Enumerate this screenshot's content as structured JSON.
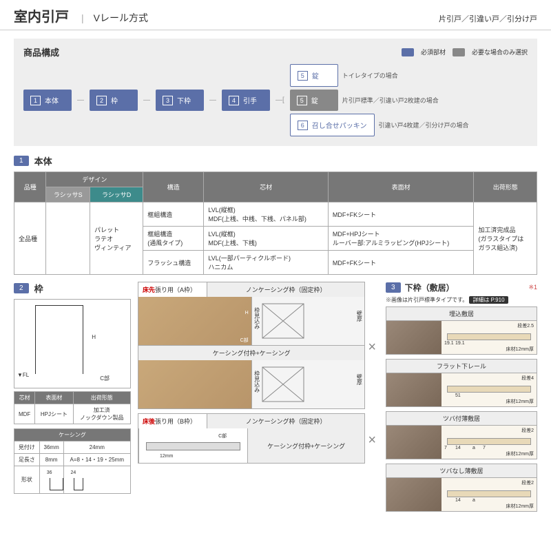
{
  "header": {
    "title": "室内引戸",
    "subtitle": "Vレール方式",
    "right": "片引戸／引違い戸／引分け戸"
  },
  "config": {
    "title": "商品構成",
    "legend": {
      "req": "必須部材",
      "req_color": "#5b6fa8",
      "opt": "必要な場合のみ選択",
      "opt_color": "#888"
    },
    "steps": [
      {
        "num": "1",
        "label": "本体"
      },
      {
        "num": "2",
        "label": "枠"
      },
      {
        "num": "3",
        "label": "下枠"
      },
      {
        "num": "4",
        "label": "引手"
      }
    ],
    "branches": [
      {
        "num": "5",
        "label": "錠",
        "note": "トイレタイプの場合",
        "style": "outline"
      },
      {
        "num": "5",
        "label": "錠",
        "note": "片引戸標準／引違い戸2枚建の場合",
        "style": "gray"
      },
      {
        "num": "6",
        "label": "召し合せパッキン",
        "note": "引違い戸4枚建／引分け戸の場合",
        "style": "outline"
      }
    ]
  },
  "section1": {
    "num": "1",
    "label": "本体"
  },
  "table1": {
    "headers": [
      "品種",
      "デザイン",
      "構造",
      "芯材",
      "表面材",
      "出荷形態"
    ],
    "sub": {
      "s": "ラシッサS",
      "d": "ラシッサD"
    },
    "row": {
      "hinshu": "全品種",
      "design_d": "パレット\nラテオ\nヴィンティア",
      "kouzou": [
        "框組構造",
        "框組構造\n(通風タイプ)",
        "フラッシュ構造"
      ],
      "shin": [
        "LVL(縦框)\nMDF(上桟、中桟、下桟、パネル部)",
        "LVL(縦框)\nMDF(上桟、下桟)",
        "LVL(一部パーティクルボード)\nハニカム"
      ],
      "hyomen": [
        "MDF+FKシート",
        "MDF+HPJシート\nルーバー部:アルミラッピング(HPJシート)",
        "MDF+FKシート"
      ],
      "shukka": "加工済完成品\n(ガラスタイプは\nガラス組込済)"
    }
  },
  "section2": {
    "num": "2",
    "label": "枠"
  },
  "section3": {
    "num": "3",
    "label": "下枠（敷居）",
    "note": "※1"
  },
  "section3_sub": "※画像は片引戸標準タイプです。",
  "section3_ref": "詳細は P.910",
  "col2": {
    "fl": "▼FL",
    "c": "C部",
    "h": "H",
    "mat": {
      "h": [
        "芯材",
        "表面材",
        "出荷形態"
      ],
      "r": [
        "MDF",
        "HPJシート",
        "加工済\nノックダウン製品"
      ]
    },
    "casing": {
      "title": "ケーシング",
      "h": [
        "見付け",
        "36mm",
        "24mm"
      ],
      "r1": [
        "足長さ",
        "8mm",
        "A=8・14・19・25mm"
      ],
      "shape": "形状"
    }
  },
  "frames": {
    "a": {
      "title_l": "床先",
      "title_l2": "張り用（A枠）",
      "r1": "ノンケーシング枠（固定枠）",
      "r2": "ケーシング付枠+ケーシング",
      "c": "C部",
      "h": "H",
      "v1": "枠見込み",
      "v2": "壁厚"
    },
    "b": {
      "title_l": "床後",
      "title_l2": "張り用（B枠）",
      "r1": "ノンケーシング枠（固定枠）",
      "r2": "ケーシング付枠+ケーシング",
      "c": "C部",
      "mm12": "12mm"
    }
  },
  "sills": [
    {
      "title": "埋込敷居",
      "d": "段差2.5",
      "a": "19.1",
      "b": "19.1",
      "c": "床材12mm厚"
    },
    {
      "title": "フラット下レール",
      "d": "段差4",
      "a": "51",
      "c": "床材12mm厚"
    },
    {
      "title": "ツバ付薄敷居",
      "d": "段差2",
      "a": "14",
      "b": "7",
      "e": "a",
      "f": "7",
      "c": "床材12mm厚"
    },
    {
      "title": "ツバなし薄敷居",
      "d": "段差2",
      "a": "14",
      "e": "a",
      "c": "床材12mm厚"
    }
  ]
}
